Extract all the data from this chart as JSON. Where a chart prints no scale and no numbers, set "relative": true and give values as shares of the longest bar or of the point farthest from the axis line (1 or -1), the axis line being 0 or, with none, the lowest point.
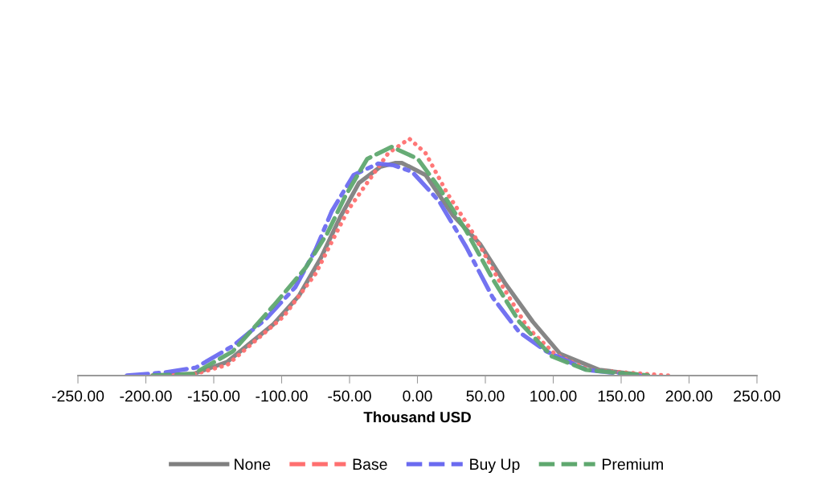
{
  "chart_data": {
    "type": "line",
    "relative": true,
    "xlabel": "Thousand USD",
    "xlim": [
      -250,
      250
    ],
    "xticks": [
      {
        "value": -250,
        "label": "-250.00"
      },
      {
        "value": -200,
        "label": "-200.00"
      },
      {
        "value": -150,
        "label": "-150.00"
      },
      {
        "value": -100,
        "label": "-100.00"
      },
      {
        "value": -50,
        "label": "-50.00"
      },
      {
        "value": 0,
        "label": "0.00"
      },
      {
        "value": 50,
        "label": "50.00"
      },
      {
        "value": 100,
        "label": "100.00"
      },
      {
        "value": 150,
        "label": "150.00"
      },
      {
        "value": 200,
        "label": "200.00"
      },
      {
        "value": 250,
        "label": "250.00"
      }
    ],
    "grid": false,
    "legend": "bottom",
    "marker": "none",
    "series": [
      {
        "name": "None",
        "color": "#7f7f7f",
        "line_style": "solid",
        "x": [
          -195,
          -165,
          -140,
          -106,
          -87,
          -71,
          -57,
          -43,
          -27.5,
          -16,
          -11.5,
          6,
          26,
          46,
          65,
          85,
          105,
          134,
          170
        ],
        "values": [
          0,
          0.007,
          0.058,
          0.217,
          0.339,
          0.498,
          0.668,
          0.814,
          0.881,
          0.898,
          0.898,
          0.847,
          0.678,
          0.556,
          0.386,
          0.227,
          0.092,
          0.024,
          0
        ]
      },
      {
        "name": "Base",
        "color": "#ff7070",
        "line_style": "dotted",
        "x": [
          -195,
          -165,
          -140,
          -98.5,
          -75,
          -63,
          -51,
          -37,
          -21.5,
          -6,
          6,
          22,
          40,
          59.5,
          81,
          101,
          126,
          185
        ],
        "values": [
          0,
          0.005,
          0.045,
          0.25,
          0.43,
          0.566,
          0.7,
          0.814,
          0.939,
          1.0,
          0.939,
          0.769,
          0.61,
          0.407,
          0.203,
          0.092,
          0.024,
          0
        ]
      },
      {
        "name": "Buy Up",
        "color": "#6b6bf0",
        "line_style": "dashdot",
        "x": [
          -214,
          -185,
          -163,
          -136,
          -112,
          -90,
          -75,
          -63,
          -47,
          -29,
          -17.5,
          -4,
          16,
          36,
          55.5,
          75,
          95,
          124.5,
          164
        ],
        "values": [
          0,
          0.014,
          0.034,
          0.125,
          0.237,
          0.373,
          0.532,
          0.695,
          0.847,
          0.895,
          0.888,
          0.861,
          0.736,
          0.542,
          0.329,
          0.183,
          0.102,
          0.024,
          0
        ]
      },
      {
        "name": "Premium",
        "color": "#5fa86f",
        "line_style": "dashed",
        "x": [
          -195,
          -165,
          -136,
          -106,
          -82.5,
          -66.5,
          -53,
          -37,
          -19,
          0.3,
          16,
          36,
          55.5,
          75,
          99,
          124.5,
          170
        ],
        "values": [
          0,
          0.007,
          0.102,
          0.295,
          0.454,
          0.6,
          0.759,
          0.915,
          0.966,
          0.915,
          0.793,
          0.61,
          0.407,
          0.227,
          0.081,
          0.024,
          0
        ]
      }
    ]
  }
}
